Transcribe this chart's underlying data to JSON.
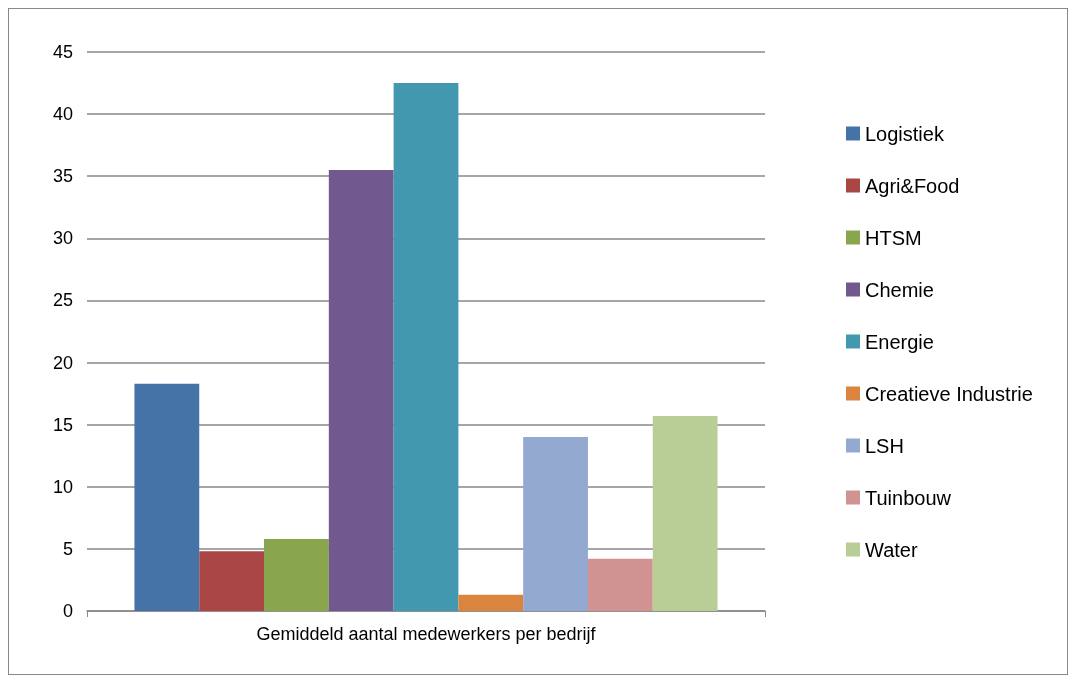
{
  "chart_data": {
    "type": "bar",
    "categories": [
      "Gemiddeld aantal medewerkers per bedrijf"
    ],
    "series": [
      {
        "name": "Logistiek",
        "color": "#4572a7",
        "values": [
          18.3
        ]
      },
      {
        "name": "Agri&Food",
        "color": "#aa4643",
        "values": [
          4.8
        ]
      },
      {
        "name": "HTSM",
        "color": "#89a54e",
        "values": [
          5.8
        ]
      },
      {
        "name": "Chemie",
        "color": "#71588f",
        "values": [
          35.5
        ]
      },
      {
        "name": "Energie",
        "color": "#4198af",
        "values": [
          42.5
        ]
      },
      {
        "name": "Creatieve Industrie",
        "color": "#db843d",
        "values": [
          1.3
        ]
      },
      {
        "name": "LSH",
        "color": "#93a9cf",
        "values": [
          14.0
        ]
      },
      {
        "name": "Tuinbouw",
        "color": "#d19392",
        "values": [
          4.2
        ]
      },
      {
        "name": "Water",
        "color": "#b9cd96",
        "values": [
          15.7
        ]
      }
    ],
    "ylim": [
      0,
      45
    ],
    "yticks": [
      0,
      5,
      10,
      15,
      20,
      25,
      30,
      35,
      40,
      45
    ],
    "grid": "y",
    "legend": "right"
  }
}
